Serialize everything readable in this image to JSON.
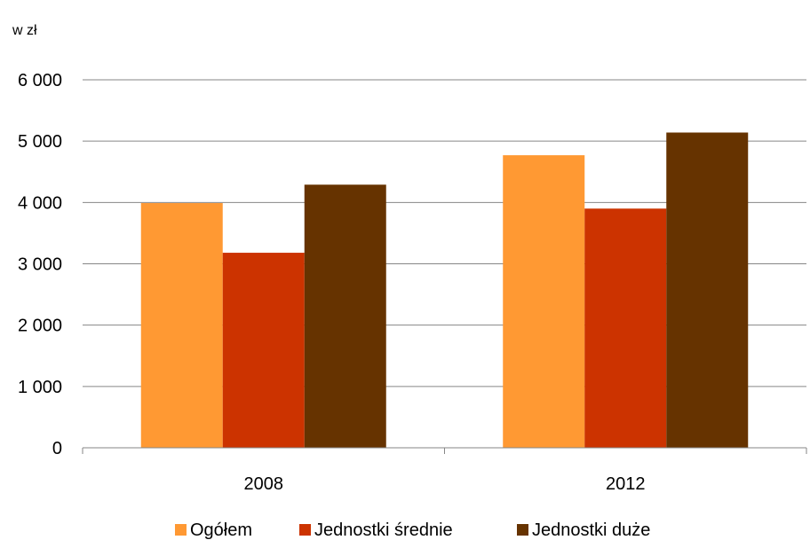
{
  "chart_data": {
    "type": "bar",
    "unit_label": "w  zł",
    "categories": [
      "2008",
      "2012"
    ],
    "series": [
      {
        "name": "Ogółem",
        "color": "#FF9933",
        "values": [
          3990,
          4770
        ]
      },
      {
        "name": "Jednostki średnie",
        "color": "#CC3300",
        "values": [
          3180,
          3900
        ]
      },
      {
        "name": "Jednostki duże",
        "color": "#663300",
        "values": [
          4290,
          5140
        ]
      }
    ],
    "ylim": [
      0,
      6000
    ],
    "yticks": [
      0,
      1000,
      2000,
      3000,
      4000,
      5000,
      6000
    ],
    "ytick_labels": [
      "0",
      "1 000",
      "2 000",
      "3 000",
      "4 000",
      "5 000",
      "6 000"
    ],
    "grid": true,
    "legend_position": "bottom"
  }
}
